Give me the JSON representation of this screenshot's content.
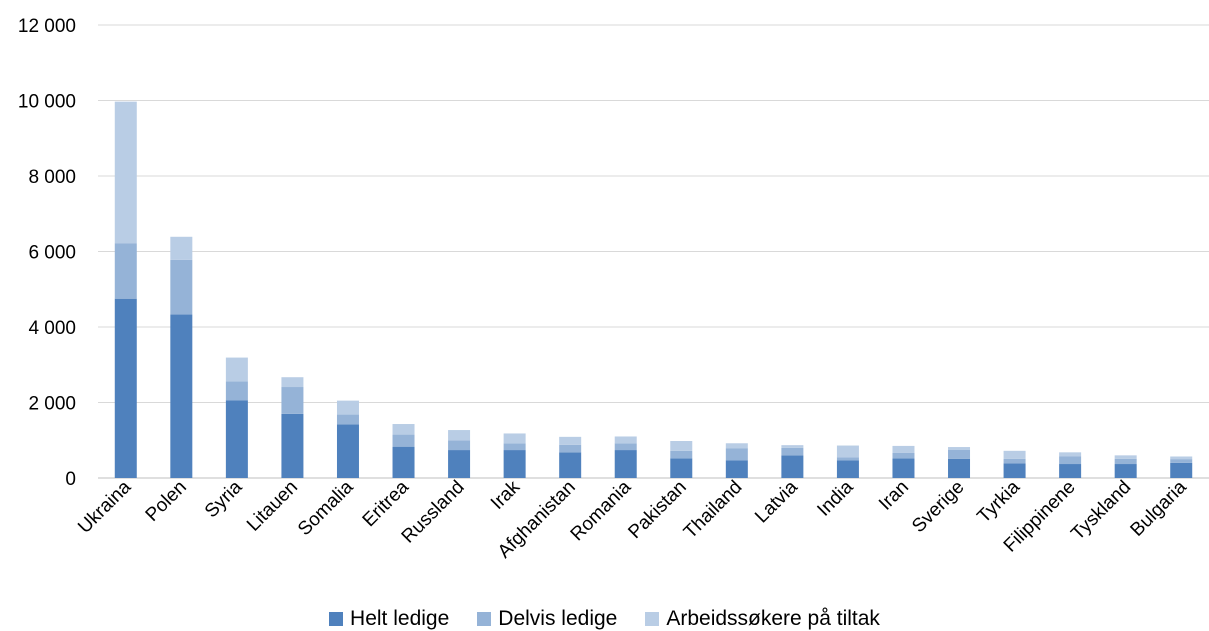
{
  "chart_data": {
    "type": "bar",
    "stacked": true,
    "title": "",
    "xlabel": "",
    "ylabel": "",
    "ylim": [
      0,
      12000
    ],
    "yticks": [
      0,
      2000,
      4000,
      6000,
      8000,
      10000,
      12000
    ],
    "ytick_labels": [
      "0",
      "2 000",
      "4 000",
      "6 000",
      "8 000",
      "10 000",
      "12 000"
    ],
    "grid": true,
    "legend_position": "bottom",
    "categories": [
      "Ukraina",
      "Polen",
      "Syria",
      "Litauen",
      "Somalia",
      "Eritrea",
      "Russland",
      "Irak",
      "Afghanistan",
      "Romania",
      "Pakistan",
      "Thailand",
      "Latvia",
      "India",
      "Iran",
      "Sverige",
      "Tyrkia",
      "Filippinene",
      "Tyskland",
      "Bulgaria"
    ],
    "series": [
      {
        "name": "Helt ledige",
        "color": "#4f81bd",
        "values": [
          4750,
          4330,
          2060,
          1700,
          1420,
          830,
          740,
          740,
          680,
          740,
          520,
          470,
          600,
          470,
          520,
          510,
          390,
          370,
          370,
          400
        ]
      },
      {
        "name": "Delvis ledige",
        "color": "#95b3d7",
        "values": [
          1470,
          1450,
          500,
          710,
          260,
          320,
          260,
          180,
          200,
          180,
          200,
          320,
          200,
          80,
          150,
          240,
          120,
          200,
          140,
          100
        ]
      },
      {
        "name": "Arbeidssøkere på tiltak",
        "color": "#b9cde5",
        "values": [
          3750,
          610,
          630,
          260,
          370,
          280,
          270,
          260,
          210,
          180,
          260,
          130,
          70,
          310,
          180,
          70,
          210,
          110,
          90,
          70
        ]
      }
    ]
  }
}
